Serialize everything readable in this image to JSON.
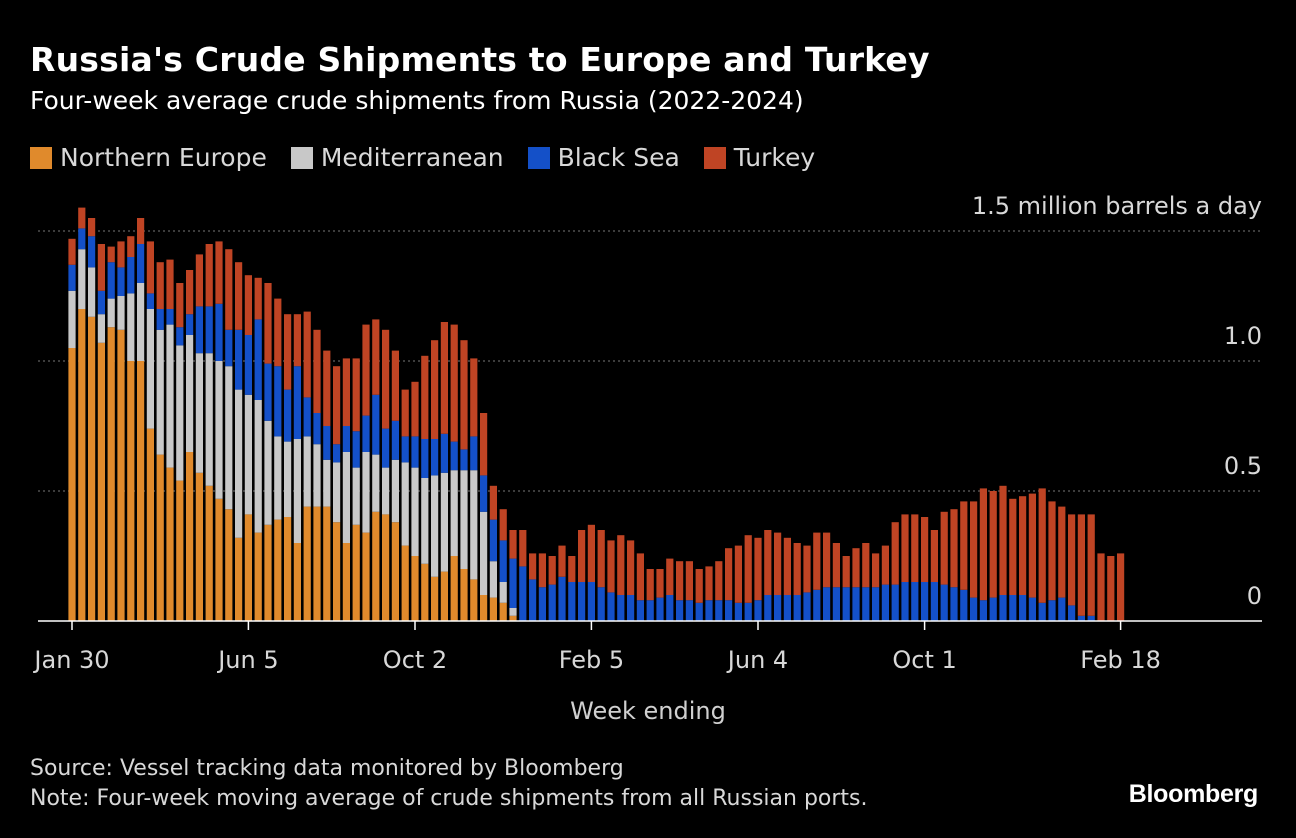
{
  "header": {
    "title": "Russia's Crude Shipments to Europe and Turkey",
    "subtitle": "Four-week average crude shipments from Russia (2022-2024)"
  },
  "footer": {
    "source": "Source: Vessel tracking data monitored by Bloomberg",
    "note": "Note: Four-week moving average of crude shipments from all Russian ports.",
    "brand": "Bloomberg"
  },
  "colors": {
    "northern_europe": "#e08a2c",
    "mediterranean": "#c8c8c8",
    "black_sea": "#1450c8",
    "turkey": "#bf4424",
    "gridline": "#777777",
    "background": "#000000"
  },
  "chart_data": {
    "type": "bar",
    "stacked": true,
    "title": "Russia's Crude Shipments to Europe and Turkey",
    "subtitle": "Four-week average crude shipments from Russia (2022-2024)",
    "xlabel": "Week ending",
    "ylabel": "",
    "unit_label": "1.5 million barrels a day",
    "ylim": [
      0,
      1.5
    ],
    "y_ticks": [
      {
        "value": 0,
        "label": "0"
      },
      {
        "value": 0.5,
        "label": "0.5"
      },
      {
        "value": 1.0,
        "label": "1.0"
      },
      {
        "value": 1.5,
        "label": "1.5 million barrels a day"
      }
    ],
    "x_ticks": [
      {
        "index": 0,
        "label": "Jan 30"
      },
      {
        "index": 18,
        "label": "Jun 5"
      },
      {
        "index": 35,
        "label": "Oct 2"
      },
      {
        "index": 53,
        "label": "Feb 5"
      },
      {
        "index": 70,
        "label": "Jun 4"
      },
      {
        "index": 87,
        "label": "Oct 1"
      },
      {
        "index": 107,
        "label": "Feb 18"
      }
    ],
    "grid": true,
    "legend_position": "top-left",
    "series": [
      {
        "name": "Northern Europe",
        "values": [
          1.05,
          1.2,
          1.17,
          1.07,
          1.13,
          1.12,
          1.0,
          1.0,
          0.74,
          0.64,
          0.59,
          0.54,
          0.65,
          0.57,
          0.52,
          0.47,
          0.43,
          0.32,
          0.41,
          0.34,
          0.37,
          0.39,
          0.4,
          0.3,
          0.44,
          0.44,
          0.44,
          0.38,
          0.3,
          0.37,
          0.34,
          0.42,
          0.41,
          0.38,
          0.29,
          0.25,
          0.22,
          0.17,
          0.19,
          0.25,
          0.2,
          0.16,
          0.1,
          0.09,
          0.07,
          0.02,
          0,
          0,
          0,
          0,
          0,
          0,
          0,
          0,
          0,
          0,
          0,
          0,
          0,
          0,
          0,
          0,
          0,
          0,
          0,
          0,
          0,
          0,
          0,
          0,
          0,
          0,
          0,
          0,
          0,
          0,
          0,
          0,
          0,
          0,
          0,
          0,
          0,
          0,
          0,
          0,
          0,
          0,
          0,
          0,
          0,
          0,
          0,
          0,
          0,
          0,
          0,
          0,
          0,
          0,
          0,
          0,
          0,
          0,
          0,
          0,
          0,
          0
        ]
      },
      {
        "name": "Mediterranean",
        "values": [
          0.22,
          0.23,
          0.19,
          0.11,
          0.11,
          0.13,
          0.26,
          0.3,
          0.46,
          0.48,
          0.55,
          0.52,
          0.45,
          0.46,
          0.51,
          0.53,
          0.55,
          0.57,
          0.46,
          0.51,
          0.4,
          0.32,
          0.29,
          0.4,
          0.27,
          0.24,
          0.18,
          0.23,
          0.35,
          0.22,
          0.31,
          0.22,
          0.18,
          0.24,
          0.32,
          0.34,
          0.33,
          0.39,
          0.38,
          0.33,
          0.38,
          0.42,
          0.32,
          0.14,
          0.08,
          0.03,
          0,
          0,
          0,
          0,
          0,
          0,
          0,
          0,
          0,
          0,
          0,
          0,
          0,
          0,
          0,
          0,
          0,
          0,
          0,
          0,
          0,
          0,
          0,
          0,
          0,
          0,
          0,
          0,
          0,
          0,
          0,
          0,
          0,
          0,
          0,
          0,
          0,
          0,
          0,
          0,
          0,
          0,
          0,
          0,
          0,
          0,
          0,
          0,
          0,
          0,
          0,
          0,
          0,
          0,
          0,
          0,
          0,
          0,
          0,
          0,
          0,
          0,
          0,
          0
        ]
      },
      {
        "name": "Black Sea",
        "values": [
          0.1,
          0.08,
          0.12,
          0.09,
          0.14,
          0.11,
          0.14,
          0.15,
          0.06,
          0.08,
          0.06,
          0.07,
          0.08,
          0.18,
          0.18,
          0.22,
          0.14,
          0.23,
          0.23,
          0.31,
          0.22,
          0.27,
          0.2,
          0.28,
          0.15,
          0.12,
          0.13,
          0.07,
          0.1,
          0.14,
          0.14,
          0.23,
          0.15,
          0.15,
          0.1,
          0.12,
          0.15,
          0.14,
          0.15,
          0.11,
          0.08,
          0.13,
          0.14,
          0.16,
          0.16,
          0.19,
          0.21,
          0.16,
          0.13,
          0.14,
          0.17,
          0.15,
          0.15,
          0.15,
          0.13,
          0.11,
          0.1,
          0.1,
          0.08,
          0.08,
          0.09,
          0.1,
          0.08,
          0.08,
          0.07,
          0.08,
          0.08,
          0.08,
          0.07,
          0.07,
          0.08,
          0.1,
          0.1,
          0.1,
          0.1,
          0.11,
          0.12,
          0.13,
          0.13,
          0.13,
          0.13,
          0.13,
          0.13,
          0.14,
          0.14,
          0.15,
          0.15,
          0.15,
          0.15,
          0.14,
          0.13,
          0.12,
          0.09,
          0.08,
          0.09,
          0.1,
          0.1,
          0.1,
          0.09,
          0.07,
          0.08,
          0.09,
          0.06,
          0.02,
          0.02,
          0,
          0,
          0,
          0
        ]
      },
      {
        "name": "Turkey",
        "values": [
          0.1,
          0.08,
          0.07,
          0.18,
          0.06,
          0.1,
          0.08,
          0.1,
          0.2,
          0.18,
          0.19,
          0.17,
          0.17,
          0.2,
          0.24,
          0.24,
          0.31,
          0.26,
          0.23,
          0.16,
          0.31,
          0.26,
          0.29,
          0.2,
          0.33,
          0.32,
          0.29,
          0.3,
          0.26,
          0.28,
          0.35,
          0.29,
          0.38,
          0.27,
          0.18,
          0.21,
          0.32,
          0.38,
          0.43,
          0.45,
          0.42,
          0.3,
          0.24,
          0.13,
          0.12,
          0.11,
          0.14,
          0.1,
          0.13,
          0.11,
          0.12,
          0.1,
          0.2,
          0.22,
          0.22,
          0.2,
          0.23,
          0.21,
          0.18,
          0.12,
          0.11,
          0.14,
          0.15,
          0.15,
          0.13,
          0.13,
          0.15,
          0.2,
          0.22,
          0.26,
          0.24,
          0.25,
          0.24,
          0.22,
          0.2,
          0.18,
          0.22,
          0.21,
          0.17,
          0.12,
          0.15,
          0.17,
          0.13,
          0.15,
          0.24,
          0.26,
          0.26,
          0.25,
          0.2,
          0.28,
          0.3,
          0.34,
          0.37,
          0.43,
          0.41,
          0.42,
          0.37,
          0.38,
          0.4,
          0.44,
          0.38,
          0.35,
          0.35,
          0.39,
          0.39,
          0.26,
          0.25,
          0.26,
          0.36
        ]
      }
    ]
  }
}
